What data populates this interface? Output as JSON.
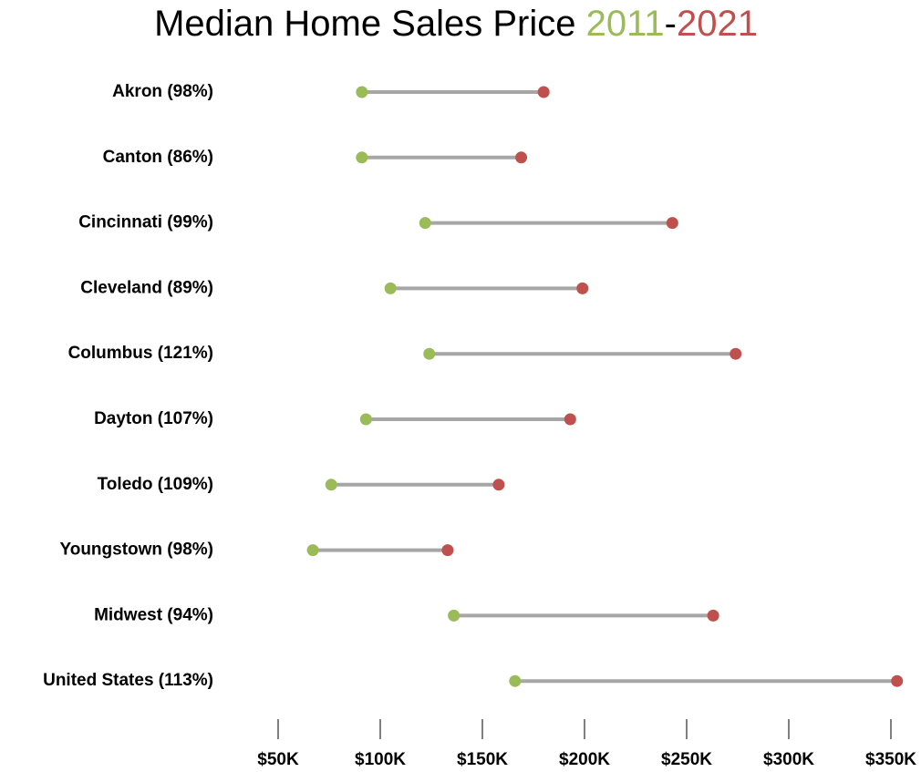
{
  "chart_data": {
    "type": "dumbbell",
    "title": "Median Home Sales Price",
    "title_separator": "-",
    "categories": [
      "Akron (98%)",
      "Canton (86%)",
      "Cincinnati (99%)",
      "Cleveland (89%)",
      "Columbus (121%)",
      "Dayton (107%)",
      "Toledo (109%)",
      "Youngstown (98%)",
      "Midwest (94%)",
      "United States (113%)"
    ],
    "series": [
      {
        "name": "2011",
        "color": "#9bbb59",
        "values": [
          91,
          91,
          122,
          105,
          124,
          93,
          76,
          67,
          136,
          166
        ]
      },
      {
        "name": "2021",
        "color": "#c0504d",
        "values": [
          180,
          169,
          243,
          199,
          274,
          193,
          158,
          133,
          263,
          353
        ]
      }
    ],
    "connector_color": "#a6a6a6",
    "xlim": [
      20,
      360
    ],
    "xticks": [
      {
        "value": 50,
        "label": "$50K"
      },
      {
        "value": 100,
        "label": "$100K"
      },
      {
        "value": 150,
        "label": "$150K"
      },
      {
        "value": 200,
        "label": "$200K"
      },
      {
        "value": 250,
        "label": "$250K"
      },
      {
        "value": 300,
        "label": "$300K"
      },
      {
        "value": 350,
        "label": "$350K"
      }
    ]
  }
}
